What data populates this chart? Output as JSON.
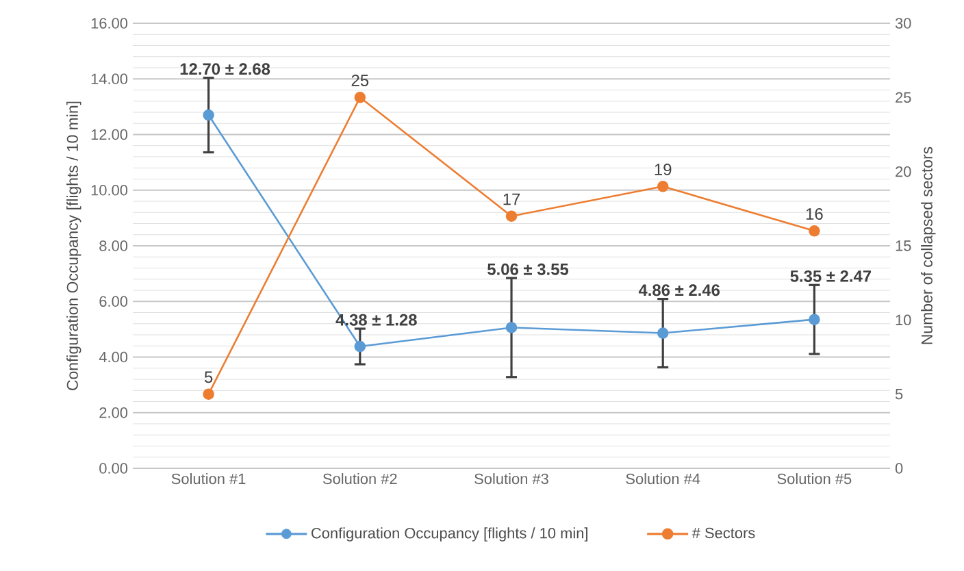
{
  "chart_data": {
    "type": "line",
    "ylabel": "Configuration Occupancy [flights / 10 min]",
    "y2label": "Number of collapsed sectors",
    "categories": [
      "Solution #1",
      "Solution #2",
      "Solution #3",
      "Solution #4",
      "Solution #5"
    ],
    "ylim": [
      0,
      16
    ],
    "yticks": [
      {
        "value": 0,
        "label": "0.00"
      },
      {
        "value": 2,
        "label": "2.00"
      },
      {
        "value": 4,
        "label": "4.00"
      },
      {
        "value": 6,
        "label": "6.00"
      },
      {
        "value": 8,
        "label": "8.00"
      },
      {
        "value": 10,
        "label": "10.00"
      },
      {
        "value": 12,
        "label": "12.00"
      },
      {
        "value": 14,
        "label": "14.00"
      },
      {
        "value": 16,
        "label": "16.00"
      }
    ],
    "y2lim": [
      0,
      30
    ],
    "y2ticks": [
      0,
      5,
      10,
      15,
      20,
      25,
      30
    ],
    "series": [
      {
        "name": "Configuration Occupancy [flights / 10 min]",
        "color": "#5b9bd5",
        "values": [
          12.7,
          4.38,
          5.06,
          4.86,
          5.35
        ],
        "errors": [
          1.34,
          0.64,
          1.78,
          1.23,
          1.24
        ],
        "value_labels": [
          "12.70 ± 2.68",
          "4.38 ± 1.28",
          "5.06 ± 3.55",
          "4.86 ± 2.46",
          "5.35 ± 2.47"
        ]
      },
      {
        "name": "# Sectors",
        "color": "#ed7d31",
        "axis": "y2",
        "values": [
          5,
          25,
          17,
          19,
          16
        ],
        "value_labels": [
          "5",
          "25",
          "17",
          "19",
          "16"
        ]
      }
    ],
    "grid": "y",
    "legend": "bottom",
    "marker": "circle",
    "line_style": "solid"
  }
}
